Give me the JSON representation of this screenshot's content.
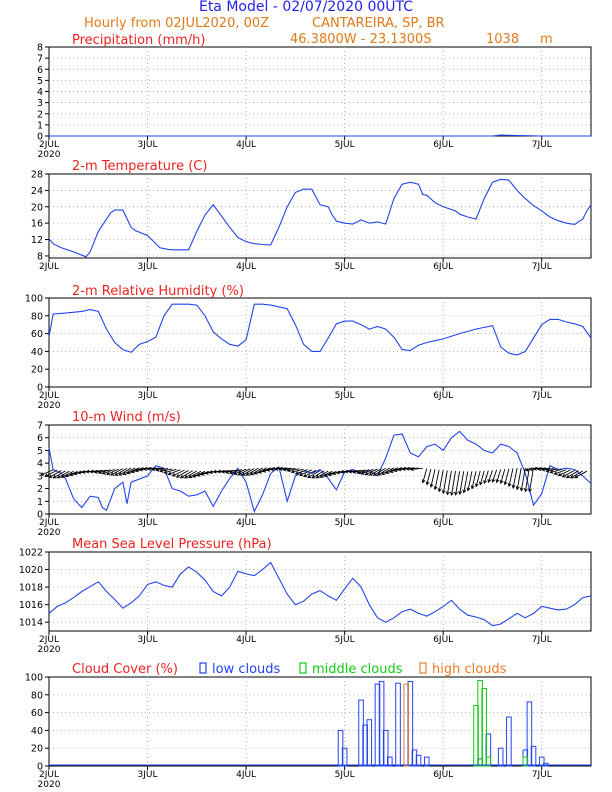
{
  "header": {
    "title": "Eta Model - 02/07/2020 00UTC",
    "subtitle": "Hourly from 02JUL2020, 00Z",
    "location": "CANTAREIRA, SP, BR",
    "coords": "46.3800W - 23.1300S",
    "elevation": "1038",
    "elevation_unit": "m"
  },
  "colors": {
    "title": "#2222ee",
    "subtitle": "#e07a1a",
    "panel_title": "#ee2222",
    "line": "#2244ee",
    "low_clouds": "#2244ee",
    "middle_clouds": "#11cc11",
    "high_clouds": "#f07a28",
    "grid": "#999999"
  },
  "x_axis": {
    "day_labels": [
      "2JUL",
      "3JUL",
      "4JUL",
      "5JUL",
      "6JUL",
      "7JUL"
    ],
    "year": "2020",
    "range_hours": [
      0,
      132
    ]
  },
  "chart_data": [
    {
      "id": "precip",
      "type": "line",
      "title": "Precipitation (mm/h)",
      "ylim": [
        0,
        8
      ],
      "yticks": [
        0,
        1,
        2,
        3,
        4,
        5,
        6,
        7,
        8
      ],
      "x": [
        0,
        24,
        48,
        72,
        96,
        108,
        110,
        120,
        132
      ],
      "values": [
        0,
        0,
        0,
        0,
        0,
        0,
        0.08,
        0,
        0
      ],
      "show_year": true
    },
    {
      "id": "temp",
      "type": "line",
      "title": "2-m Temperature (C)",
      "ylim": [
        7.5,
        28
      ],
      "yticks": [
        8,
        12,
        16,
        20,
        24,
        28
      ],
      "x": [
        0,
        1,
        3,
        6,
        9,
        10,
        12,
        14,
        15,
        16,
        18,
        20,
        21,
        24,
        27,
        28,
        29,
        30,
        32,
        34,
        36,
        38,
        40,
        44,
        46,
        48,
        50,
        52,
        54,
        56,
        58,
        60,
        62,
        64,
        66,
        68,
        69,
        70,
        72,
        74,
        76,
        78,
        80,
        82,
        84,
        86,
        88,
        90,
        91,
        92,
        94,
        96,
        99,
        100,
        102,
        104,
        106,
        108,
        110,
        112,
        114,
        116,
        118,
        120,
        122,
        124,
        126,
        128,
        130,
        131,
        132
      ],
      "values": [
        12.2,
        11,
        10,
        9,
        7.8,
        9,
        14,
        17,
        18.5,
        19.2,
        19.2,
        15,
        14.2,
        13,
        10,
        9.8,
        9.6,
        9.5,
        9.5,
        9.5,
        14,
        18,
        20.5,
        15,
        12.5,
        11.5,
        11,
        10.8,
        10.7,
        15,
        20,
        23.5,
        24.3,
        24.3,
        20.5,
        20,
        18,
        16.5,
        16,
        15.8,
        16.8,
        16,
        16.3,
        15.8,
        22,
        25.5,
        26,
        25.5,
        23,
        22.8,
        21,
        20,
        19,
        18.2,
        17.5,
        17,
        22,
        26,
        26.7,
        26.5,
        24,
        22,
        20.3,
        19,
        17.5,
        16.6,
        16,
        15.7,
        17,
        19,
        20.5
      ],
      "show_year": false
    },
    {
      "id": "rh",
      "type": "line",
      "title": "2-m Relative Humidity (%)",
      "ylim": [
        0,
        100
      ],
      "yticks": [
        0,
        20,
        40,
        60,
        80,
        100
      ],
      "x": [
        0,
        1,
        4,
        8,
        10,
        12,
        14,
        16,
        18,
        20,
        22,
        24,
        26,
        28,
        30,
        34,
        36,
        38,
        40,
        42,
        44,
        46,
        48,
        50,
        52,
        54,
        58,
        60,
        62,
        64,
        66,
        68,
        70,
        72,
        74,
        76,
        78,
        80,
        82,
        84,
        86,
        88,
        90,
        92,
        94,
        96,
        100,
        104,
        108,
        110,
        112,
        114,
        116,
        118,
        120,
        122,
        124,
        126,
        128,
        130,
        132
      ],
      "values": [
        56,
        82,
        83,
        85,
        87,
        85,
        65,
        50,
        42,
        39,
        48,
        51,
        56,
        80,
        93,
        93,
        92,
        80,
        62,
        54,
        48,
        46,
        53,
        93,
        93,
        92,
        88,
        70,
        48,
        40,
        40,
        55,
        71,
        74,
        74,
        70,
        65,
        68,
        65,
        56,
        42,
        41,
        47,
        50,
        52,
        54,
        60,
        65,
        69,
        45,
        38,
        36,
        40,
        55,
        70,
        76,
        76,
        73,
        71,
        68,
        55
      ],
      "show_year": true
    },
    {
      "id": "wind",
      "type": "line",
      "title": "10-m Wind (m/s)",
      "ylim": [
        0,
        7
      ],
      "yticks": [
        0,
        1,
        2,
        3,
        4,
        5,
        6,
        7
      ],
      "x": [
        0,
        1,
        3,
        4,
        5,
        6,
        8,
        10,
        12,
        13,
        14,
        16,
        18,
        19,
        20,
        24,
        26,
        28,
        30,
        32,
        34,
        36,
        38,
        40,
        42,
        44,
        46,
        48,
        50,
        52,
        54,
        56,
        58,
        60,
        62,
        64,
        66,
        68,
        70,
        72,
        74,
        76,
        78,
        80,
        82,
        84,
        86,
        88,
        90,
        92,
        94,
        96,
        98,
        100,
        102,
        104,
        106,
        108,
        110,
        112,
        114,
        116,
        118,
        120,
        122,
        124,
        126,
        128,
        130,
        132
      ],
      "values": [
        5.2,
        3.5,
        3.2,
        2.8,
        2.0,
        1.2,
        0.5,
        1.4,
        1.3,
        0.5,
        0.3,
        2.0,
        2.5,
        0.8,
        2.5,
        3.0,
        3.8,
        3.6,
        2.0,
        1.8,
        1.4,
        1.5,
        1.8,
        0.6,
        1.8,
        2.8,
        3.6,
        2.5,
        0.2,
        1.5,
        3.2,
        3.7,
        1.0,
        3.0,
        3.4,
        3.2,
        3.5,
        2.8,
        1.9,
        3.3,
        3.5,
        3.2,
        3.4,
        3.0,
        4.4,
        6.2,
        6.3,
        4.8,
        4.5,
        5.3,
        5.5,
        5.0,
        6.0,
        6.5,
        5.8,
        5.5,
        5.0,
        4.8,
        5.5,
        5.3,
        4.8,
        3.2,
        0.7,
        1.6,
        3.8,
        3.5,
        3.6,
        3.5,
        3.0,
        2.4
      ],
      "barbs": "wind direction arrows along the series",
      "show_year": true
    },
    {
      "id": "mslp",
      "type": "line",
      "title": "Mean Sea Level Pressure (hPa)",
      "ylim": [
        1013,
        1022
      ],
      "yticks": [
        1014,
        1016,
        1018,
        1020,
        1022
      ],
      "x": [
        0,
        2,
        4,
        6,
        8,
        12,
        14,
        16,
        18,
        20,
        22,
        24,
        26,
        28,
        30,
        32,
        34,
        36,
        38,
        40,
        42,
        44,
        46,
        48,
        50,
        52,
        54,
        56,
        58,
        60,
        62,
        64,
        66,
        68,
        70,
        72,
        74,
        76,
        78,
        80,
        82,
        84,
        86,
        88,
        90,
        92,
        94,
        96,
        98,
        100,
        102,
        104,
        106,
        108,
        110,
        112,
        114,
        116,
        118,
        120,
        122,
        124,
        126,
        128,
        130,
        132
      ],
      "values": [
        1015.0,
        1015.8,
        1016.2,
        1016.8,
        1017.5,
        1018.6,
        1017.5,
        1016.6,
        1015.6,
        1016.2,
        1017.0,
        1018.3,
        1018.6,
        1018.2,
        1018.0,
        1019.5,
        1020.3,
        1019.7,
        1018.8,
        1017.5,
        1017.0,
        1018.0,
        1019.8,
        1019.5,
        1019.3,
        1020.0,
        1020.8,
        1019.0,
        1017.2,
        1016.0,
        1016.4,
        1017.2,
        1017.6,
        1017.0,
        1016.5,
        1017.8,
        1019.0,
        1018.0,
        1016.0,
        1014.5,
        1014.0,
        1014.5,
        1015.2,
        1015.5,
        1015.0,
        1014.7,
        1015.2,
        1015.8,
        1016.5,
        1015.5,
        1014.8,
        1014.6,
        1014.3,
        1013.6,
        1013.8,
        1014.4,
        1015.0,
        1014.5,
        1015.0,
        1015.8,
        1015.6,
        1015.4,
        1015.5,
        1016.0,
        1016.8,
        1017.0
      ],
      "show_year": true
    },
    {
      "id": "cloud",
      "type": "bar",
      "title": "Cloud Cover (%)",
      "ylim": [
        0,
        100
      ],
      "yticks": [
        0,
        20,
        40,
        60,
        80,
        100
      ],
      "legend": [
        {
          "name": "low clouds",
          "color": "#2244ee"
        },
        {
          "name": "middle clouds",
          "color": "#11cc11"
        },
        {
          "name": "high clouds",
          "color": "#f07a28"
        }
      ],
      "series": [
        {
          "name": "low clouds",
          "x": [
            71,
            72,
            76,
            77,
            78,
            80,
            81,
            82,
            83,
            85,
            88,
            89,
            90,
            92,
            105,
            107,
            110,
            112,
            116,
            117,
            118,
            120,
            121
          ],
          "values": [
            40,
            20,
            74,
            46,
            52,
            92,
            95,
            40,
            10,
            93,
            95,
            18,
            12,
            10,
            8,
            36,
            20,
            55,
            18,
            72,
            22,
            10,
            3
          ]
        },
        {
          "name": "middle clouds",
          "x": [
            104,
            105,
            106,
            107,
            116
          ],
          "values": [
            68,
            96,
            87,
            10,
            10
          ]
        },
        {
          "name": "high clouds",
          "x": [
            87
          ],
          "values": [
            92
          ]
        }
      ],
      "show_year": true
    }
  ]
}
